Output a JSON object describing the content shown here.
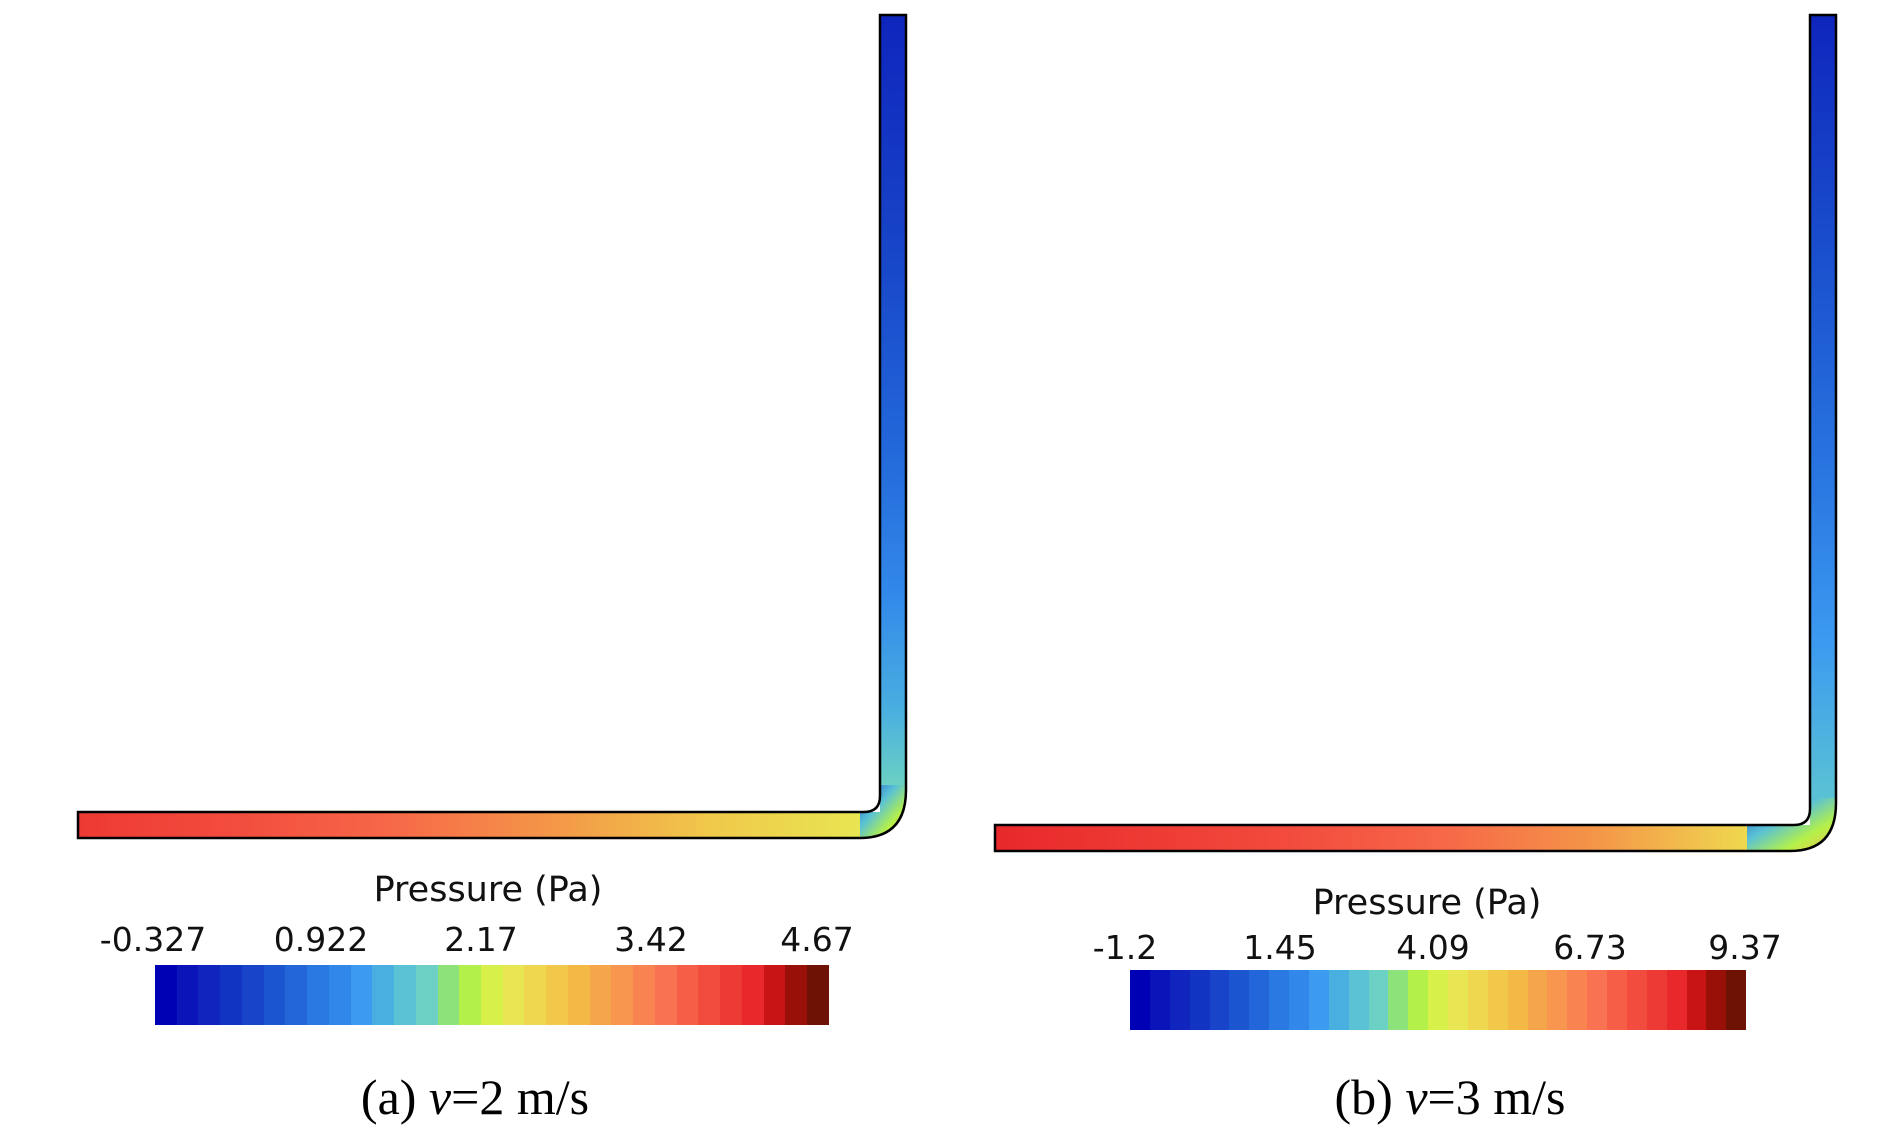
{
  "colormap": [
    "#0000b4",
    "#0a14b8",
    "#0f25bd",
    "#1234c2",
    "#1744c8",
    "#1c55d0",
    "#2266d9",
    "#2a78e2",
    "#3288ea",
    "#3c9af0",
    "#49aee0",
    "#5ac2d4",
    "#6cd0c4",
    "#8ee27a",
    "#b4f04a",
    "#d8f04a",
    "#e8e652",
    "#efd84f",
    "#f2c84a",
    "#f4b845",
    "#f6a64a",
    "#f89650",
    "#f98452",
    "#f97252",
    "#f65e48",
    "#f24c3e",
    "#ee3a34",
    "#e8282a",
    "#c81414",
    "#981008",
    "#6e1206"
  ],
  "panels": [
    {
      "id": "a",
      "legend_title": "Pressure (Pa)",
      "ticks": [
        "-0.327",
        "0.922",
        "2.17",
        "3.42",
        "4.67"
      ],
      "caption_prefix": "(a) ",
      "caption_var": "v",
      "caption_suffix": "=2 m/s"
    },
    {
      "id": "b",
      "legend_title": "Pressure (Pa)",
      "ticks": [
        "-1.2",
        "1.45",
        "4.09",
        "6.73",
        "9.37"
      ],
      "caption_prefix": "(b) ",
      "caption_var": "v",
      "caption_suffix": "=3 m/s"
    }
  ]
}
